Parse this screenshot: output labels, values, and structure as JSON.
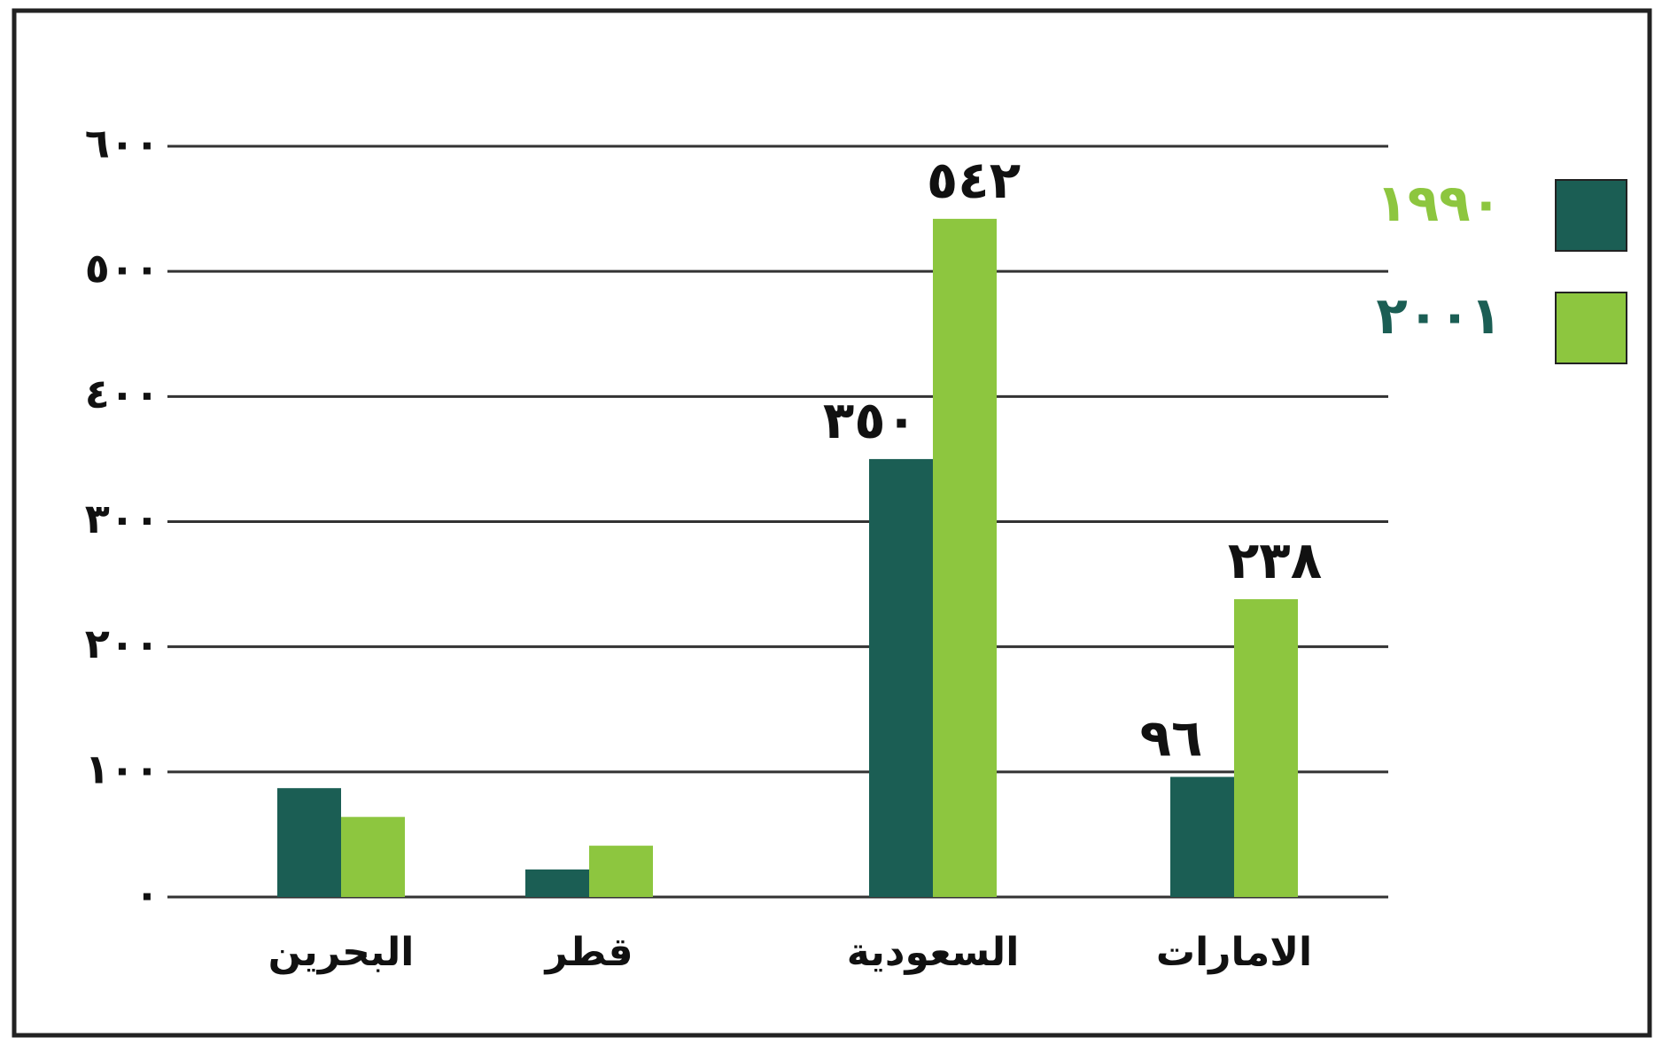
{
  "chart_data": {
    "type": "bar",
    "categories": [
      "البحرين",
      "قطر",
      "السعودية",
      "الامارات"
    ],
    "series": [
      {
        "name": "١٩٩٠",
        "color": "#1b5e54",
        "legend_text_color": "#8dc63f",
        "values": [
          87,
          22,
          350,
          96
        ],
        "value_labels": [
          null,
          null,
          "٣٥٠",
          "٩٦"
        ]
      },
      {
        "name": "٢٠٠١",
        "color": "#8dc63f",
        "legend_text_color": "#1b5e54",
        "values": [
          64,
          41,
          542,
          238
        ],
        "value_labels": [
          null,
          null,
          "٥٤٢",
          "٢٣٨"
        ]
      }
    ],
    "ylim": [
      0,
      600
    ],
    "yticks": [
      {
        "value": 0,
        "label": "٠"
      },
      {
        "value": 100,
        "label": "١٠٠"
      },
      {
        "value": 200,
        "label": "٢٠٠"
      },
      {
        "value": 300,
        "label": "٣٠٠"
      },
      {
        "value": 400,
        "label": "٤٠٠"
      },
      {
        "value": 500,
        "label": "٥٠٠"
      },
      {
        "value": 600,
        "label": "٦٠٠"
      }
    ],
    "grid": true,
    "legend": "right"
  }
}
